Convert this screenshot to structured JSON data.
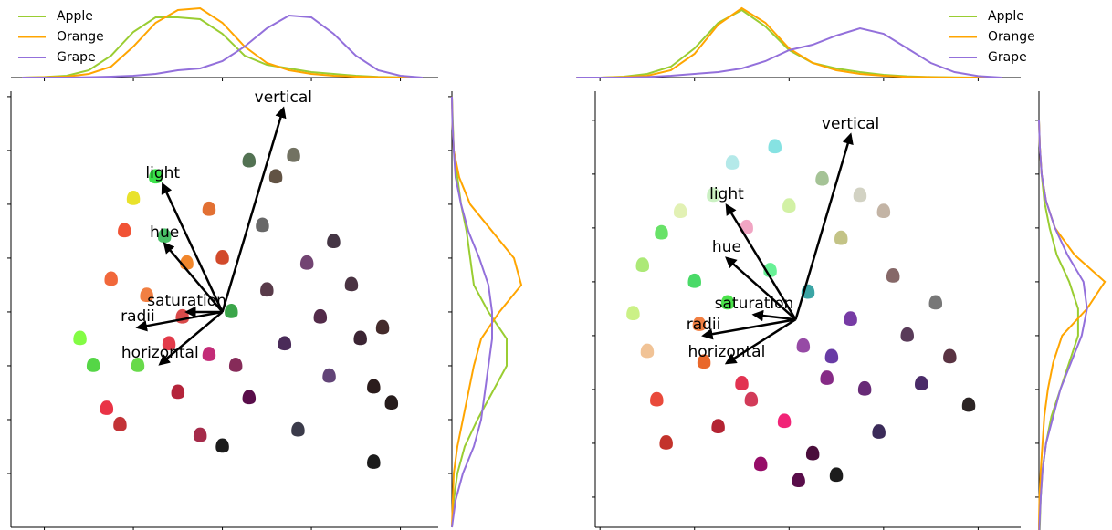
{
  "chart_data": [
    {
      "type": "biplot",
      "legend": "upper left",
      "xlim": [
        -4.75,
        4.85
      ],
      "ylim": [
        -4,
        4.1
      ],
      "xticks": [
        -4,
        -2,
        0,
        2,
        4
      ],
      "yticks": [
        -3,
        -2,
        -1,
        0,
        1,
        2,
        3,
        4
      ],
      "points": {
        "x": [
          -3.2,
          -2.9,
          -2.6,
          -2.3,
          -2.5,
          -2.2,
          -2.0,
          -1.5,
          -1.3,
          -1.7,
          -1.2,
          -1.0,
          -0.5,
          -0.8,
          -0.3,
          0,
          0.2,
          0.3,
          0.6,
          0.0,
          0.9,
          1.2,
          1.0,
          1.4,
          1.7,
          1.9,
          2.2,
          2.5,
          2.4,
          2.9,
          3.1,
          3.4,
          3.6,
          3.8,
          3.4,
          -0.9,
          -1.9,
          0.6,
          1.6,
          -0.3
        ],
        "y": [
          -0.5,
          -1,
          -1.8,
          -2.1,
          0.6,
          1.5,
          2.1,
          2.5,
          1.4,
          0.3,
          -0.6,
          -1.5,
          -2.3,
          0.9,
          1.9,
          1.0,
          0,
          -1,
          -1.6,
          -2.5,
          1.6,
          2.5,
          0.4,
          -0.6,
          -2.2,
          0.9,
          -0.1,
          1.3,
          -1.2,
          0.5,
          -0.5,
          -1.4,
          -0.3,
          -1.7,
          -2.8,
          -0.1,
          -1.0,
          2.8,
          2.9,
          -0.8
        ],
        "colors": [
          "#7cfc3a",
          "#4cd43c",
          "#e8283c",
          "#c0282c",
          "#f06030",
          "#f04a2a",
          "#e8e020",
          "#30e040",
          "#40c060",
          "#f07838",
          "#e03040",
          "#b01830",
          "#a02040",
          "#f08020",
          "#e06828",
          "#d04020",
          "#30a040",
          "#802050",
          "#500040",
          "#101010",
          "#606060",
          "#5a4a3a",
          "#503040",
          "#402050",
          "#303040",
          "#6a3a6a",
          "#4a2040",
          "#3a2a3a",
          "#5a3a70",
          "#402838",
          "#301828",
          "#201010",
          "#3a2020",
          "#1a1010",
          "#101010",
          "#d84040",
          "#60d840",
          "#4a6a4a",
          "#6a6a5a",
          "#c02070"
        ]
      },
      "arrow_origin": {
        "x": 0,
        "y": 0
      },
      "arrows": [
        {
          "label": "vertical",
          "x": 1.37,
          "y": 3.78
        },
        {
          "label": "light",
          "x": -1.34,
          "y": 2.37
        },
        {
          "label": "hue",
          "x": -1.3,
          "y": 1.27
        },
        {
          "label": "saturation",
          "x": -0.8,
          "y": 0
        },
        {
          "label": "radii",
          "x": -1.9,
          "y": -0.29
        },
        {
          "label": "horizontal",
          "x": -1.4,
          "y": -0.97
        }
      ],
      "top_density": {
        "x": [
          -4.5,
          -4,
          -3.5,
          -3,
          -2.5,
          -2,
          -1.5,
          -1,
          -0.5,
          0,
          0.5,
          1,
          1.5,
          2,
          2.5,
          3,
          3.5,
          4,
          4.5
        ],
        "ylim": [
          0,
          0.4
        ],
        "series": [
          {
            "name": "Apple",
            "color": "#9acd32",
            "values": [
              0,
              0.003,
              0.01,
              0.04,
              0.12,
              0.25,
              0.33,
              0.33,
              0.32,
              0.24,
              0.12,
              0.07,
              0.05,
              0.03,
              0.02,
              0.01,
              0.004,
              0.001,
              0
            ]
          },
          {
            "name": "Orange",
            "color": "#ffa500",
            "values": [
              0,
              0.002,
              0.005,
              0.02,
              0.06,
              0.17,
              0.3,
              0.37,
              0.38,
              0.3,
              0.17,
              0.08,
              0.04,
              0.02,
              0.01,
              0.005,
              0.002,
              0,
              0
            ]
          },
          {
            "name": "Grape",
            "color": "#9370db",
            "values": [
              0,
              0,
              0,
              0.002,
              0.005,
              0.01,
              0.02,
              0.04,
              0.05,
              0.09,
              0.17,
              0.27,
              0.34,
              0.33,
              0.24,
              0.12,
              0.04,
              0.01,
              0
            ]
          }
        ]
      },
      "right_density": {
        "y": [
          -4,
          -3.5,
          -3,
          -2.5,
          -2,
          -1.5,
          -1,
          -0.5,
          0,
          0.5,
          1,
          1.5,
          2,
          2.5,
          3,
          3.5,
          4
        ],
        "xlim": [
          0,
          0.4
        ],
        "series": [
          {
            "name": "Apple",
            "color": "#9acd32",
            "values": [
              0,
              0.01,
              0.03,
              0.07,
              0.14,
              0.22,
              0.3,
              0.3,
              0.2,
              0.12,
              0.1,
              0.08,
              0.05,
              0.03,
              0.01,
              0.005,
              0
            ]
          },
          {
            "name": "Orange",
            "color": "#ffa500",
            "values": [
              0,
              0.005,
              0.01,
              0.03,
              0.06,
              0.09,
              0.12,
              0.16,
              0.26,
              0.38,
              0.34,
              0.22,
              0.1,
              0.04,
              0.01,
              0.003,
              0
            ]
          },
          {
            "name": "Grape",
            "color": "#9370db",
            "values": [
              0,
              0.02,
              0.06,
              0.12,
              0.16,
              0.18,
              0.2,
              0.22,
              0.22,
              0.2,
              0.15,
              0.09,
              0.05,
              0.02,
              0.01,
              0.003,
              0
            ]
          }
        ]
      }
    },
    {
      "type": "biplot",
      "legend": "upper right",
      "xlim": [
        -4.1,
        4.9
      ],
      "ylim": [
        -3.56,
        4.54
      ],
      "xticks": [
        -4,
        -2,
        0,
        2,
        4
      ],
      "yticks": [
        -3,
        -2,
        -1,
        0,
        1,
        2,
        3,
        4
      ],
      "points": {
        "x": [
          -3.3,
          -3.0,
          -2.8,
          -2.6,
          -3.1,
          -2.7,
          -2.3,
          -2.0,
          -1.8,
          -1.5,
          -1.9,
          -1.6,
          -1.2,
          -0.9,
          -0.6,
          -1.0,
          -0.4,
          -0.1,
          0.2,
          0.5,
          -0.3,
          0.0,
          0.4,
          0.8,
          1.1,
          0.7,
          1.3,
          1.6,
          1.9,
          2.2,
          2.5,
          2.8,
          3.1,
          3.4,
          3.8,
          1.0,
          -1.3,
          0.3,
          2.0,
          -0.8,
          0.9,
          1.5
        ],
        "y": [
          0.4,
          -0.3,
          -1.2,
          -2.0,
          1.3,
          1.9,
          2.3,
          1.0,
          -0.5,
          -1.7,
          0.2,
          2.6,
          3.2,
          2.0,
          -2.4,
          -0.9,
          1.2,
          -1.6,
          -2.7,
          -2.2,
          3.5,
          2.4,
          0.8,
          -0.8,
          1.8,
          2.9,
          0.3,
          -1.0,
          -1.8,
          1.1,
          0,
          -0.9,
          0.6,
          -0.4,
          -1.3,
          -2.6,
          0.6,
          -0.2,
          2.3,
          -1.2,
          -0.4,
          2.6
        ],
        "colors": [
          "#c8f080",
          "#f0c090",
          "#e84030",
          "#c02820",
          "#a8e870",
          "#60e060",
          "#e0f0b0",
          "#40d860",
          "#e86020",
          "#b01828",
          "#f07838",
          "#c8f0c0",
          "#b0e8e8",
          "#f0a0c0",
          "#900060",
          "#e02848",
          "#60f090",
          "#f01870",
          "#500040",
          "#400030",
          "#80e0e0",
          "#d0f0a0",
          "#30a0a0",
          "#802080",
          "#c0c080",
          "#a0c090",
          "#7030a0",
          "#602070",
          "#302050",
          "#806060",
          "#503050",
          "#402060",
          "#707070",
          "#502838",
          "#201818",
          "#101010",
          "#40e040",
          "#9040a0",
          "#c0b0a0",
          "#d03050",
          "#6030a0",
          "#d0d0c0"
        ]
      },
      "arrow_origin": {
        "x": 0.14,
        "y": 0.3
      },
      "arrows": [
        {
          "label": "vertical",
          "x": 1.3,
          "y": 3.73
        },
        {
          "label": "light",
          "x": -1.32,
          "y": 2.42
        },
        {
          "label": "hue",
          "x": -1.32,
          "y": 1.44
        },
        {
          "label": "saturation",
          "x": -0.74,
          "y": 0.39
        },
        {
          "label": "radii",
          "x": -1.81,
          "y": 0
        },
        {
          "label": "horizontal",
          "x": -1.32,
          "y": -0.51
        }
      ],
      "top_density": {
        "x": [
          -4.5,
          -4,
          -3.5,
          -3,
          -2.5,
          -2,
          -1.5,
          -1,
          -0.5,
          0,
          0.5,
          1,
          1.5,
          2,
          2.5,
          3,
          3.5,
          4,
          4.5
        ],
        "ylim": [
          0,
          0.4
        ],
        "series": [
          {
            "name": "Apple",
            "color": "#9acd32",
            "values": [
              0,
              0,
              0.005,
              0.02,
              0.06,
              0.16,
              0.3,
              0.37,
              0.28,
              0.15,
              0.08,
              0.05,
              0.03,
              0.015,
              0.007,
              0.003,
              0.001,
              0,
              0
            ]
          },
          {
            "name": "Orange",
            "color": "#ffa500",
            "values": [
              0,
              0,
              0.003,
              0.01,
              0.04,
              0.13,
              0.29,
              0.38,
              0.3,
              0.16,
              0.08,
              0.04,
              0.02,
              0.01,
              0.004,
              0.002,
              0,
              0,
              0
            ]
          },
          {
            "name": "Grape",
            "color": "#9370db",
            "values": [
              0,
              0,
              0,
              0.003,
              0.01,
              0.02,
              0.03,
              0.05,
              0.09,
              0.15,
              0.18,
              0.23,
              0.27,
              0.24,
              0.16,
              0.08,
              0.03,
              0.008,
              0
            ]
          }
        ]
      },
      "right_density": {
        "y": [
          -4,
          -3.5,
          -3,
          -2.5,
          -2,
          -1.5,
          -1,
          -0.5,
          0,
          0.5,
          1,
          1.5,
          2,
          2.5,
          3,
          3.5,
          4
        ],
        "xlim": [
          0,
          0.4
        ],
        "series": [
          {
            "name": "Apple",
            "color": "#9acd32",
            "values": [
              0,
              0.005,
              0.01,
              0.02,
              0.04,
              0.07,
              0.12,
              0.17,
              0.22,
              0.22,
              0.17,
              0.1,
              0.06,
              0.03,
              0.015,
              0.005,
              0
            ]
          },
          {
            "name": "Orange",
            "color": "#ffa500",
            "values": [
              0,
              0,
              0.003,
              0.01,
              0.02,
              0.03,
              0.05,
              0.08,
              0.13,
              0.27,
              0.37,
              0.2,
              0.09,
              0.04,
              0.015,
              0.005,
              0
            ]
          },
          {
            "name": "Grape",
            "color": "#9370db",
            "values": [
              0,
              0.003,
              0.01,
              0.02,
              0.04,
              0.08,
              0.12,
              0.18,
              0.24,
              0.27,
              0.25,
              0.16,
              0.09,
              0.04,
              0.015,
              0.005,
              0
            ]
          }
        ]
      }
    }
  ]
}
